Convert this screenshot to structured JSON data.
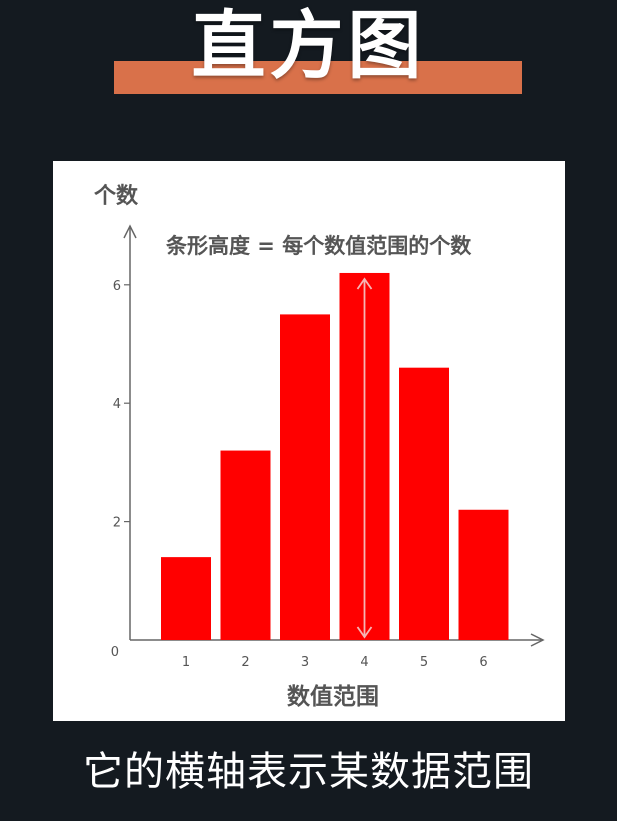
{
  "page": {
    "title": "直方图",
    "caption": "它的横轴表示某数据范围"
  },
  "chart_data": {
    "type": "bar",
    "title": "",
    "annotation": "条形高度 = 每个数值范围的个数",
    "xlabel": "数值范围",
    "ylabel": "个数",
    "categories": [
      "1",
      "2",
      "3",
      "4",
      "5",
      "6"
    ],
    "values": [
      1.4,
      3.2,
      5.5,
      6.2,
      4.6,
      2.2
    ],
    "y_ticks": [
      0,
      2,
      4,
      6
    ],
    "ylim": [
      0,
      7.4
    ],
    "grid": false,
    "legend": "none",
    "bar_color": "#ff0000",
    "highlight_category": "4",
    "highlight_arrow_color": "#f5b5b5"
  },
  "colors": {
    "background": "#141a20",
    "title_bar": "#d9714a",
    "axis": "#666666",
    "label_text": "#555555"
  }
}
